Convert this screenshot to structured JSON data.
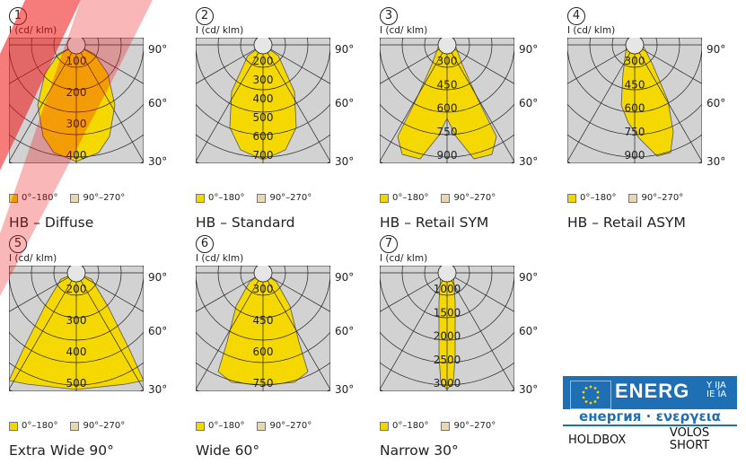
{
  "unit_label": "I (cd/ klm)",
  "angle_labels": {
    "a90": "90°",
    "a60": "60°",
    "a30": "30°"
  },
  "legend": {
    "range_a": "0°–180°",
    "range_b": "90°–270°",
    "color_a": "#f2d600",
    "color_b": "#e8d7b0"
  },
  "colors": {
    "grid_bg": "#d2d2d2",
    "fill": "#f5d800",
    "watermark": "#ee1111"
  },
  "panels": [
    {
      "num": "1",
      "caption": "HB – Diffuse",
      "ticks": [
        "100",
        "200",
        "300",
        "400"
      ]
    },
    {
      "num": "2",
      "caption": "HB – Standard",
      "ticks": [
        "200",
        "300",
        "400",
        "500",
        "600",
        "700"
      ]
    },
    {
      "num": "3",
      "caption": "HB – Retail SYM",
      "ticks": [
        "300",
        "450",
        "600",
        "750",
        "900"
      ]
    },
    {
      "num": "4",
      "caption": "HB – Retail ASYM",
      "ticks": [
        "300",
        "450",
        "600",
        "750",
        "900"
      ]
    },
    {
      "num": "5",
      "caption": "Extra Wide 90°",
      "ticks": [
        "200",
        "300",
        "400",
        "500"
      ]
    },
    {
      "num": "6",
      "caption": "Wide 60°",
      "ticks": [
        "300",
        "450",
        "600",
        "750"
      ]
    },
    {
      "num": "7",
      "caption": "Narrow 30°",
      "ticks": [
        "1000",
        "1500",
        "2000",
        "2500",
        "3000"
      ]
    }
  ],
  "energy_label": {
    "title": "ENERG",
    "superscript": [
      "Y IJA",
      "IE IA"
    ],
    "subtitle": "енергия · ενεργεια",
    "brand": "HOLDBOX",
    "model": "VOLOS SHORT"
  }
}
